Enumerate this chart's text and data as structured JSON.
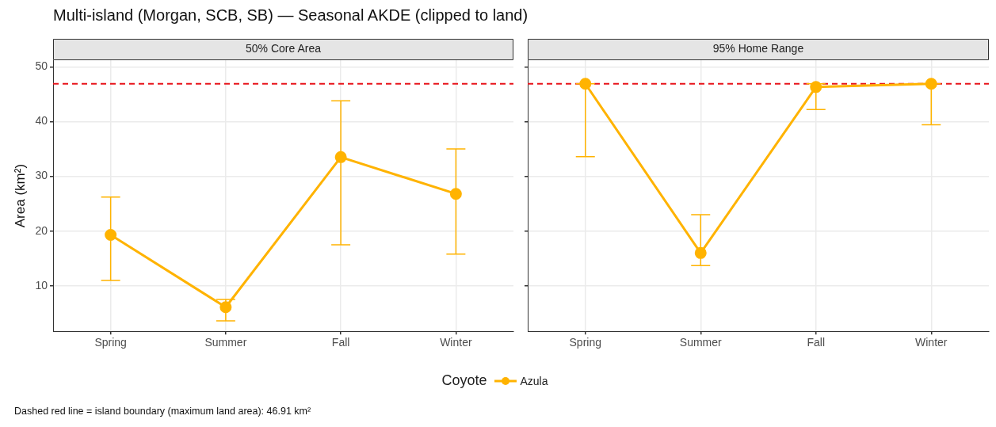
{
  "chart_data": [
    {
      "type": "line",
      "title": "Multi-island (Morgan, SCB, SB) — Seasonal AKDE (clipped to land)",
      "subtitle": "50% Core Area",
      "ylabel": "Area (km²)",
      "legend_title": "Coyote",
      "legend": "bottom",
      "categories": [
        "Spring",
        "Summer",
        "Fall",
        "Winter"
      ],
      "series": [
        {
          "name": "Azula",
          "color": "#ffb300",
          "values": [
            19.3,
            6.1,
            33.5,
            26.8
          ],
          "errors": [
            [
              11.0,
              26.2
            ],
            [
              3.6,
              7.5
            ],
            [
              17.5,
              43.8
            ],
            [
              15.8,
              35.0
            ]
          ]
        }
      ],
      "ylim": [
        1.7,
        51.2
      ],
      "yticks": [
        10,
        20,
        30,
        40,
        50
      ],
      "grid": true,
      "marker": "circle",
      "line_style": "solid",
      "ref_lines": [
        {
          "axis": "y",
          "value": 46.91,
          "color": "#e8141b",
          "line_style": "dashed"
        }
      ],
      "annotations": [
        "Dashed red line = island boundary (maximum land area): 46.91 km²"
      ]
    },
    {
      "type": "line",
      "subtitle": "95% Home Range",
      "legend": false,
      "tick_labels": "x",
      "categories": [
        "Spring",
        "Summer",
        "Fall",
        "Winter"
      ],
      "series": [
        {
          "name": "Azula",
          "color": "#ffb300",
          "values": [
            46.9,
            16.0,
            46.3,
            46.9
          ],
          "errors": [
            [
              33.6,
              46.9
            ],
            [
              13.7,
              23.0
            ],
            [
              42.2,
              46.9
            ],
            [
              39.4,
              46.9
            ]
          ]
        }
      ],
      "ylim": [
        1.7,
        51.2
      ],
      "yticks": [
        10,
        20,
        30,
        40,
        50
      ],
      "grid": true,
      "marker": "circle",
      "line_style": "solid",
      "ref_lines": [
        {
          "axis": "y",
          "value": 46.91,
          "color": "#e8141b",
          "line_style": "dashed"
        }
      ]
    }
  ]
}
